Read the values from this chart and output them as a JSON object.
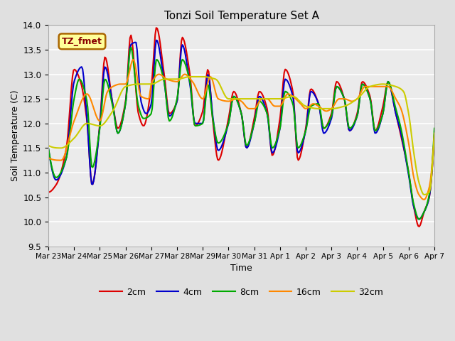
{
  "title": "Tonzi Soil Temperature Set A",
  "xlabel": "Time",
  "ylabel": "Soil Temperature (C)",
  "ylim": [
    9.5,
    14.0
  ],
  "xtick_labels": [
    "Mar 23",
    "Mar 24",
    "Mar 25",
    "Mar 26",
    "Mar 27",
    "Mar 28",
    "Mar 29",
    "Mar 30",
    "Mar 31",
    "Apr 1",
    "Apr 2",
    "Apr 3",
    "Apr 4",
    "Apr 5",
    "Apr 6",
    "Apr 7"
  ],
  "annotation_text": "TZ_fmet",
  "annotation_bg": "#FFFF99",
  "annotation_border": "#AA6600",
  "bg_color": "#E0E0E0",
  "plot_bg": "#EBEBEB",
  "series_colors": [
    "#DD0000",
    "#0000CC",
    "#00AA00",
    "#FF8800",
    "#CCCC00"
  ],
  "series_labels": [
    "2cm",
    "4cm",
    "8cm",
    "16cm",
    "32cm"
  ],
  "series_linewidth": 1.5,
  "yticks": [
    9.5,
    10.0,
    10.5,
    11.0,
    11.5,
    12.0,
    12.5,
    13.0,
    13.5,
    14.0
  ]
}
